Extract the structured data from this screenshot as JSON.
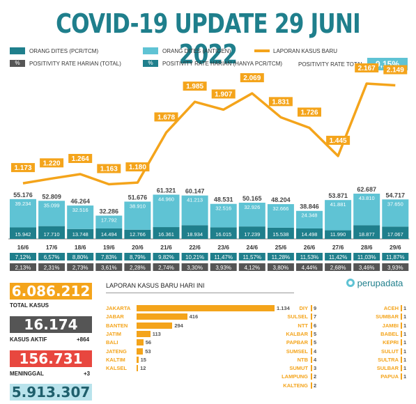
{
  "title": "COVID-19 UPDATE 29 JUNI 2022",
  "legend": {
    "pcr": "ORANG DITES (PCR/TCM)",
    "antigen": "ORANG DITES (ANTIGEN)",
    "cases": "LAPORAN KASUS BARU",
    "pos_total_sym": "%",
    "pos_total": "POSITIVITY RATE HARIAN (TOTAL)",
    "pos_pcr_sym": "%",
    "pos_pcr": "POSITIVITY RATE HARIAN (HANYA PCR/TCM)",
    "pos_overall_label": "POSITIVITY RATE TOTAL",
    "pos_overall_value": "9,15%"
  },
  "colors": {
    "pcr": "#1f7f8c",
    "antigen": "#5fc3d4",
    "cases": "#f4a41b",
    "gray": "#555555",
    "active": "#555555",
    "deaths": "#e8473f",
    "recovered": "#b9e3ec"
  },
  "chart_data": {
    "type": "bar",
    "categories": [
      "16/6",
      "17/6",
      "18/6",
      "19/6",
      "20/6",
      "21/6",
      "22/6",
      "23/6",
      "24/6",
      "25/6",
      "26/6",
      "27/6",
      "28/6",
      "29/6"
    ],
    "series": [
      {
        "name": "ORANG DITES (PCR/TCM)",
        "values": [
          15942,
          17710,
          13748,
          14494,
          12766,
          16361,
          18934,
          16015,
          17239,
          15538,
          14498,
          11990,
          18877,
          17067
        ]
      },
      {
        "name": "ORANG DITES (ANTIGEN)",
        "values": [
          39234,
          35099,
          32516,
          17792,
          38910,
          44960,
          41213,
          32516,
          32926,
          32666,
          24348,
          41881,
          43810,
          37650
        ]
      },
      {
        "name": "LAPORAN KASUS BARU",
        "values": [
          1173,
          1220,
          1264,
          1163,
          1180,
          1678,
          1985,
          1907,
          2069,
          1831,
          1726,
          1445,
          2167,
          2149
        ]
      }
    ],
    "bar_totals": [
      "55.176",
      "52.809",
      "46.264",
      "32.286",
      "51.676",
      "61.321",
      "60.147",
      "48.531",
      "50.165",
      "48.204",
      "38.846",
      "53.871",
      "62.687",
      "54.717"
    ],
    "pcr_labels": [
      "15.942",
      "17.710",
      "13.748",
      "14.494",
      "12.766",
      "16.361",
      "18.934",
      "16.015",
      "17.239",
      "15.538",
      "14.498",
      "11.990",
      "18.877",
      "17.067"
    ],
    "antigen_labels": [
      "39.234",
      "35.099",
      "32.516",
      "17.792",
      "38.910",
      "44.960",
      "41.213",
      "32.516",
      "32.926",
      "32.666",
      "24.348",
      "41.881",
      "43.810",
      "37.650"
    ],
    "case_labels": [
      "1.173",
      "1.220",
      "1.264",
      "1.163",
      "1.180",
      "1.678",
      "1.985",
      "1.907",
      "2.069",
      "1.831",
      "1.726",
      "1.445",
      "2.167",
      "2.149"
    ],
    "pos_pcr": [
      "7,12%",
      "6,57%",
      "8,80%",
      "7,83%",
      "8,79%",
      "9,82%",
      "10,21%",
      "11,47%",
      "11,57%",
      "11,28%",
      "11,53%",
      "11,42%",
      "11,03%",
      "11,87%"
    ],
    "pos_total": [
      "2,13%",
      "2,31%",
      "2,73%",
      "3,61%",
      "2,28%",
      "2,74%",
      "3,30%",
      "3,93%",
      "4,12%",
      "3,80%",
      "4,44%",
      "2,68%",
      "3,46%",
      "3,93%"
    ]
  },
  "stats": {
    "total_cases": "6.086.212",
    "total_cases_label": "TOTAL KASUS",
    "active": "16.174",
    "active_label": "KASUS AKTIF",
    "active_delta": "+864",
    "deaths": "156.731",
    "deaths_label": "MENINGGAL",
    "deaths_delta": "+3",
    "recovered": "5.913.307"
  },
  "provinces": {
    "header": "LAPORAN KASUS BARU HARI INI",
    "top": [
      {
        "name": "JAKARTA",
        "value": 1134,
        "label": "1.134"
      },
      {
        "name": "JABAR",
        "value": 416,
        "label": "416"
      },
      {
        "name": "BANTEN",
        "value": 294,
        "label": "294"
      },
      {
        "name": "JATIM",
        "value": 113,
        "label": "113"
      },
      {
        "name": "BALI",
        "value": 56,
        "label": "56"
      },
      {
        "name": "JATENG",
        "value": 53,
        "label": "53"
      },
      {
        "name": "KALTIM",
        "value": 15,
        "label": "15"
      },
      {
        "name": "KALSEL",
        "value": 12,
        "label": "12"
      }
    ],
    "col2": [
      {
        "name": "DIY",
        "value": "9"
      },
      {
        "name": "SULSEL",
        "value": "7"
      },
      {
        "name": "NTT",
        "value": "6"
      },
      {
        "name": "KALBAR",
        "value": "5"
      },
      {
        "name": "PAPBAR",
        "value": "5"
      },
      {
        "name": "SUMSEL",
        "value": "4"
      },
      {
        "name": "NTB",
        "value": "4"
      },
      {
        "name": "SUMUT",
        "value": "3"
      },
      {
        "name": "LAMPUNG",
        "value": "2"
      },
      {
        "name": "KALTENG",
        "value": "2"
      }
    ],
    "col3": [
      {
        "name": "ACEH",
        "value": "1"
      },
      {
        "name": "SUMBAR",
        "value": "1"
      },
      {
        "name": "JAMBI",
        "value": "1"
      },
      {
        "name": "BABEL",
        "value": "1"
      },
      {
        "name": "KEPRI",
        "value": "1"
      },
      {
        "name": "SULUT",
        "value": "1"
      },
      {
        "name": "SULTRA",
        "value": "1"
      },
      {
        "name": "SULBAR",
        "value": "1"
      },
      {
        "name": "PAPUA",
        "value": "1"
      }
    ]
  },
  "brand": "perupadata"
}
